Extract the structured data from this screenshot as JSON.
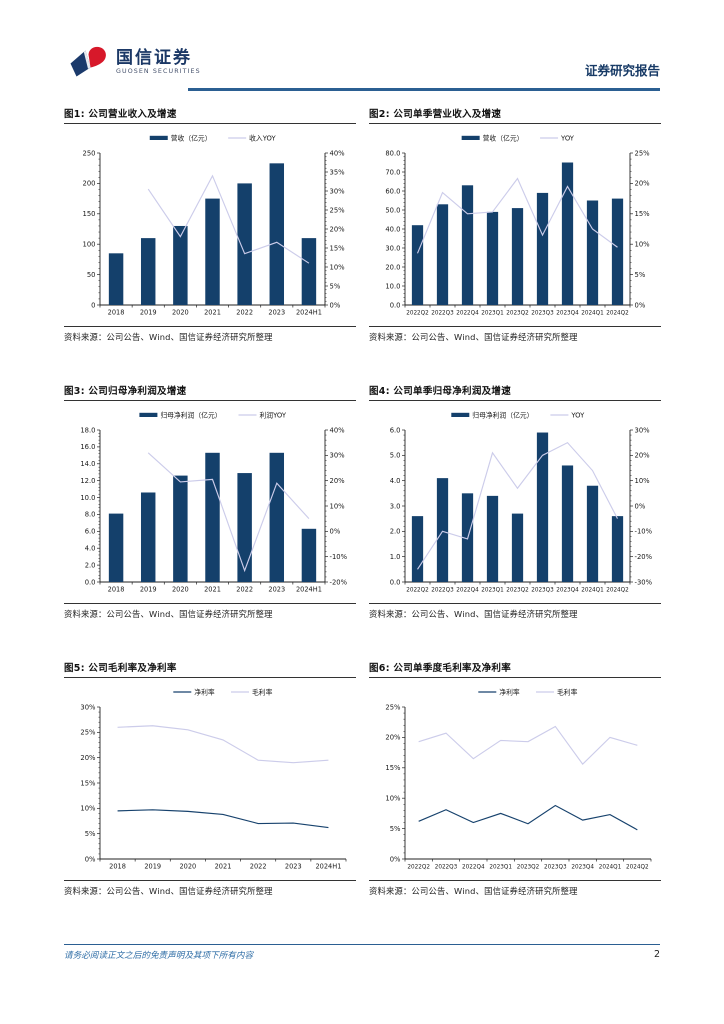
{
  "header": {
    "logo_cn": "国信证券",
    "logo_en": "GUOSEN SECURITIES",
    "report_type": "证券研究报告"
  },
  "source_note": "资料来源：公司公告、Wind、国信证券经济研究所整理",
  "footer": {
    "disclaimer": "请务必阅读正文之后的免责声明及其项下所有内容",
    "page_number": "2"
  },
  "colors": {
    "bar": "#14406B",
    "line_light": "#CCCCEA",
    "line_dark": "#17426D",
    "header_rule": "#2B5F92",
    "logo_red": "#D7182A",
    "logo_blue": "#1B3A6B"
  },
  "chart_data": [
    {
      "id": "fig1",
      "type": "bar",
      "title": "图1: 公司营业收入及增速",
      "categories": [
        "2018",
        "2019",
        "2020",
        "2021",
        "2022",
        "2023",
        "2024H1"
      ],
      "series": [
        {
          "name": "营收（亿元）",
          "type": "bar",
          "axis": "left",
          "values": [
            85,
            110,
            130,
            175,
            200,
            233,
            110
          ]
        },
        {
          "name": "收入YOY",
          "type": "line",
          "axis": "right",
          "color": "light",
          "values": [
            null,
            30.5,
            18,
            34,
            13.5,
            16.5,
            11
          ]
        }
      ],
      "left_axis": {
        "min": 0,
        "max": 250,
        "step": 50,
        "format": "int"
      },
      "right_axis": {
        "min": 0,
        "max": 40,
        "step": 5,
        "format": "pct"
      },
      "legend_position": "top",
      "grid": false
    },
    {
      "id": "fig2",
      "type": "bar",
      "title": "图2: 公司单季营业收入及增速",
      "categories": [
        "2022Q2",
        "2022Q3",
        "2022Q4",
        "2023Q1",
        "2023Q2",
        "2023Q3",
        "2023Q4",
        "2024Q1",
        "2024Q2"
      ],
      "series": [
        {
          "name": "营收（亿元）",
          "type": "bar",
          "axis": "left",
          "values": [
            42,
            53,
            63,
            49,
            51,
            59,
            75,
            55,
            56
          ]
        },
        {
          "name": "YOY",
          "type": "line",
          "axis": "right",
          "color": "light",
          "values": [
            8.5,
            18.5,
            15,
            15.3,
            20.8,
            11.5,
            19.5,
            12.5,
            9.5
          ]
        }
      ],
      "left_axis": {
        "min": 0,
        "max": 80,
        "step": 10,
        "format": "dec1"
      },
      "right_axis": {
        "min": 0,
        "max": 25,
        "step": 5,
        "format": "pct"
      },
      "legend_position": "top",
      "grid": false
    },
    {
      "id": "fig3",
      "type": "bar",
      "title": "图3: 公司归母净利润及增速",
      "categories": [
        "2018",
        "2019",
        "2020",
        "2021",
        "2022",
        "2023",
        "2024H1"
      ],
      "series": [
        {
          "name": "归母净利润（亿元）",
          "type": "bar",
          "axis": "left",
          "values": [
            8.1,
            10.6,
            12.6,
            15.3,
            12.9,
            15.3,
            6.3
          ]
        },
        {
          "name": "利润YOY",
          "type": "line",
          "axis": "right",
          "color": "light",
          "values": [
            null,
            31,
            19.5,
            20.5,
            -15.5,
            19,
            5
          ]
        }
      ],
      "left_axis": {
        "min": 0,
        "max": 18,
        "step": 2,
        "format": "dec1"
      },
      "right_axis": {
        "min": -20,
        "max": 40,
        "step": 10,
        "format": "pct"
      },
      "legend_position": "top",
      "grid": false
    },
    {
      "id": "fig4",
      "type": "bar",
      "title": "图4: 公司单季归母净利润及增速",
      "categories": [
        "2022Q2",
        "2022Q3",
        "2022Q4",
        "2023Q1",
        "2023Q2",
        "2023Q3",
        "2023Q4",
        "2024Q1",
        "2024Q2"
      ],
      "series": [
        {
          "name": "归母净利润（亿元）",
          "type": "bar",
          "axis": "left",
          "values": [
            2.6,
            4.1,
            3.5,
            3.4,
            2.7,
            5.9,
            4.6,
            3.8,
            2.6
          ]
        },
        {
          "name": "YOY",
          "type": "line",
          "axis": "right",
          "color": "light",
          "values": [
            -25,
            -10,
            -13,
            21,
            7,
            20,
            25,
            14,
            -5
          ]
        }
      ],
      "left_axis": {
        "min": 0,
        "max": 6,
        "step": 1,
        "format": "dec1"
      },
      "right_axis": {
        "min": -30,
        "max": 30,
        "step": 10,
        "format": "pct"
      },
      "legend_position": "top",
      "grid": false
    },
    {
      "id": "fig5",
      "type": "line",
      "title": "图5: 公司毛利率及净利率",
      "categories": [
        "2018",
        "2019",
        "2020",
        "2021",
        "2022",
        "2023",
        "2024H1"
      ],
      "series": [
        {
          "name": "净利率",
          "type": "line",
          "axis": "left",
          "color": "dark",
          "values": [
            9.5,
            9.7,
            9.4,
            8.8,
            7.0,
            7.1,
            6.2
          ]
        },
        {
          "name": "毛利率",
          "type": "line",
          "axis": "left",
          "color": "light",
          "values": [
            26.0,
            26.3,
            25.5,
            23.5,
            19.5,
            19.0,
            19.5
          ]
        }
      ],
      "left_axis": {
        "min": 0,
        "max": 30,
        "step": 5,
        "format": "pct"
      },
      "legend_position": "top",
      "grid": false
    },
    {
      "id": "fig6",
      "type": "line",
      "title": "图6: 公司单季度毛利率及净利率",
      "categories": [
        "2022Q2",
        "2022Q3",
        "2022Q4",
        "2023Q1",
        "2023Q2",
        "2023Q3",
        "2023Q4",
        "2024Q1",
        "2024Q2"
      ],
      "series": [
        {
          "name": "净利率",
          "type": "line",
          "axis": "left",
          "color": "dark",
          "values": [
            6.2,
            8.1,
            6.0,
            7.5,
            5.8,
            8.8,
            6.4,
            7.3,
            4.8
          ]
        },
        {
          "name": "毛利率",
          "type": "line",
          "axis": "left",
          "color": "light",
          "values": [
            19.3,
            20.7,
            16.5,
            19.5,
            19.3,
            21.8,
            15.6,
            20.0,
            18.7
          ]
        }
      ],
      "left_axis": {
        "min": 0,
        "max": 25,
        "step": 5,
        "format": "pct"
      },
      "legend_position": "top",
      "grid": false
    }
  ]
}
